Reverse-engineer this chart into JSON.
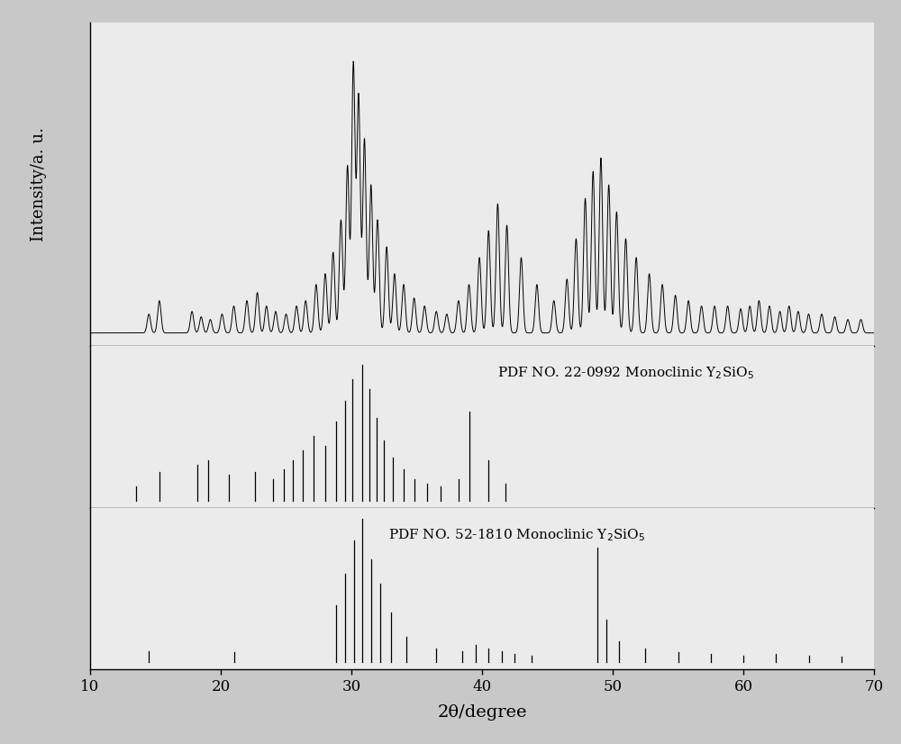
{
  "xmin": 10,
  "xmax": 70,
  "xlabel": "2θ/degree",
  "ylabel": "Intensity/a. u.",
  "background_color": "#c8c8c8",
  "panel_bg": "#ebebeb",
  "label1": "PDF NO. 22-0992 Monoclinic Y$_2$SiO$_5$",
  "label2": "PDF NO. 52-1810 Monoclinic Y$_2$SiO$_5$",
  "xrd_peaks": {
    "positions": [
      14.5,
      15.3,
      17.8,
      18.5,
      19.2,
      20.1,
      21.0,
      22.0,
      22.8,
      23.5,
      24.2,
      25.0,
      25.8,
      26.5,
      27.3,
      28.0,
      28.6,
      29.2,
      29.7,
      30.15,
      30.55,
      31.0,
      31.5,
      32.0,
      32.7,
      33.3,
      34.0,
      34.8,
      35.6,
      36.5,
      37.3,
      38.2,
      39.0,
      39.8,
      40.5,
      41.2,
      41.9,
      43.0,
      44.2,
      45.5,
      46.5,
      47.2,
      47.9,
      48.5,
      49.1,
      49.7,
      50.3,
      51.0,
      51.8,
      52.8,
      53.8,
      54.8,
      55.8,
      56.8,
      57.8,
      58.8,
      59.8,
      60.5,
      61.2,
      62.0,
      62.8,
      63.5,
      64.2,
      65.0,
      66.0,
      67.0,
      68.0,
      69.0
    ],
    "intensities": [
      0.07,
      0.12,
      0.08,
      0.06,
      0.05,
      0.07,
      0.1,
      0.12,
      0.15,
      0.1,
      0.08,
      0.07,
      0.1,
      0.12,
      0.18,
      0.22,
      0.3,
      0.42,
      0.62,
      1.0,
      0.88,
      0.72,
      0.55,
      0.42,
      0.32,
      0.22,
      0.18,
      0.13,
      0.1,
      0.08,
      0.07,
      0.12,
      0.18,
      0.28,
      0.38,
      0.48,
      0.4,
      0.28,
      0.18,
      0.12,
      0.2,
      0.35,
      0.5,
      0.6,
      0.65,
      0.55,
      0.45,
      0.35,
      0.28,
      0.22,
      0.18,
      0.14,
      0.12,
      0.1,
      0.1,
      0.1,
      0.09,
      0.1,
      0.12,
      0.1,
      0.08,
      0.1,
      0.08,
      0.07,
      0.07,
      0.06,
      0.05,
      0.05
    ]
  },
  "pdf1_sticks": {
    "positions": [
      13.5,
      15.3,
      18.2,
      19.0,
      20.6,
      22.6,
      24.0,
      24.8,
      25.5,
      26.3,
      27.1,
      28.0,
      28.8,
      29.5,
      30.1,
      30.8,
      31.4,
      31.9,
      32.5,
      33.2,
      34.0,
      34.8,
      35.8,
      36.8,
      38.2,
      39.0,
      40.5,
      41.8
    ],
    "intensities": [
      0.1,
      0.2,
      0.25,
      0.28,
      0.18,
      0.2,
      0.15,
      0.22,
      0.28,
      0.35,
      0.45,
      0.38,
      0.55,
      0.7,
      0.85,
      0.95,
      0.78,
      0.58,
      0.42,
      0.3,
      0.22,
      0.15,
      0.12,
      0.1,
      0.15,
      0.62,
      0.28,
      0.12
    ]
  },
  "pdf2_sticks": {
    "positions": [
      14.5,
      21.0,
      28.8,
      29.5,
      30.2,
      30.8,
      31.5,
      32.2,
      33.0,
      34.2,
      36.5,
      38.5,
      39.5,
      40.5,
      41.5,
      42.5,
      43.8,
      48.8,
      49.5,
      50.5,
      52.5,
      55.0,
      57.5,
      60.0,
      62.5,
      65.0,
      67.5
    ],
    "intensities": [
      0.08,
      0.07,
      0.4,
      0.62,
      0.85,
      1.0,
      0.72,
      0.55,
      0.35,
      0.18,
      0.1,
      0.08,
      0.12,
      0.1,
      0.08,
      0.06,
      0.05,
      0.8,
      0.3,
      0.15,
      0.1,
      0.07,
      0.06,
      0.05,
      0.06,
      0.05,
      0.04
    ]
  }
}
